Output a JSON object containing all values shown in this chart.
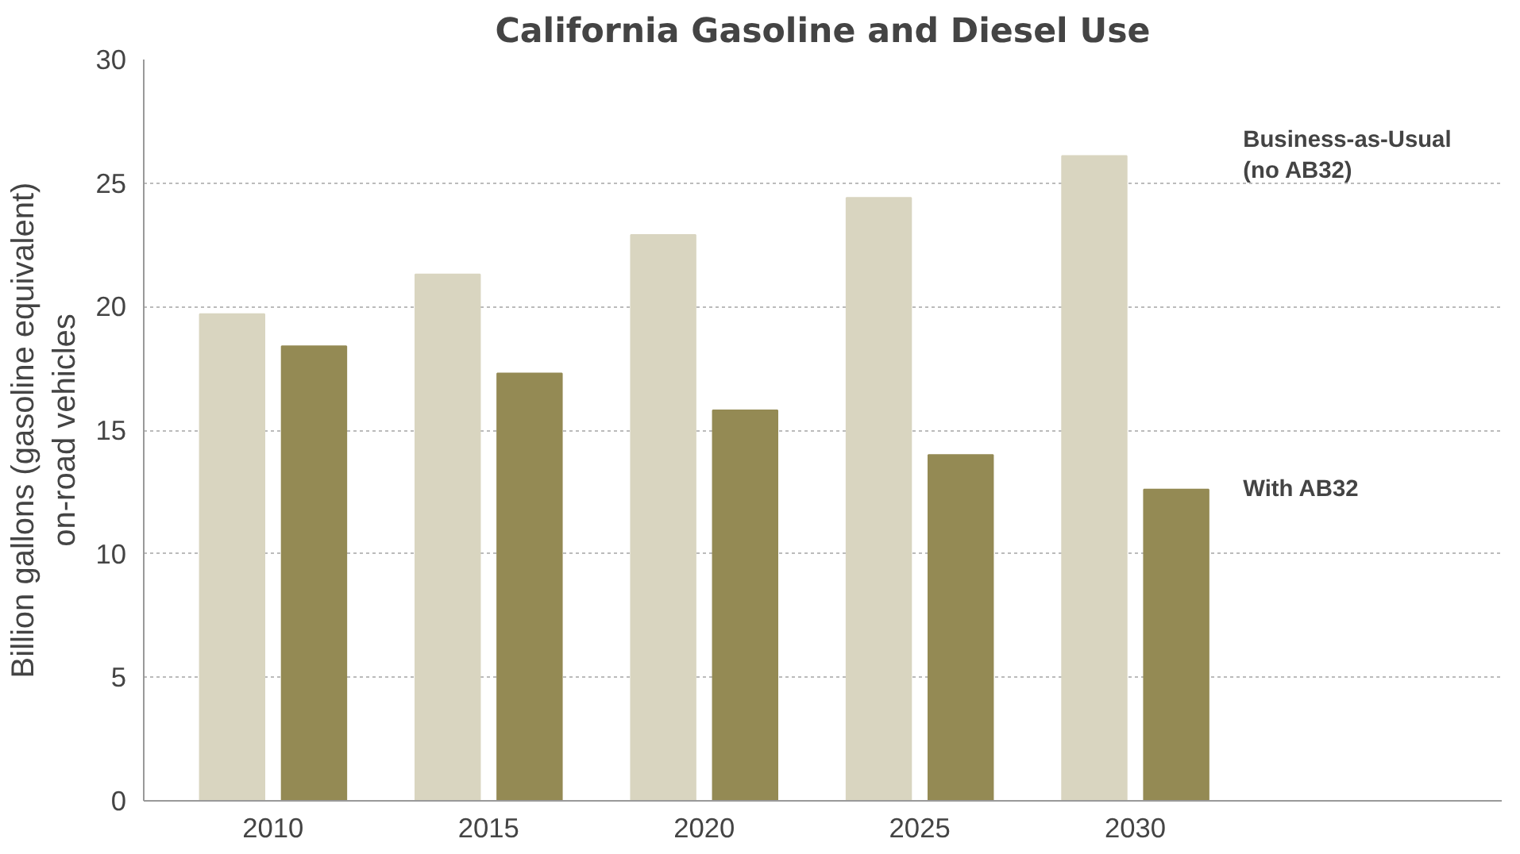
{
  "chart_data": {
    "type": "bar",
    "title": "California Gasoline and Diesel Use",
    "ylabel": "Billion gallons (gasoline equivalent)\non-road vehicles",
    "categories": [
      "2010",
      "2015",
      "2020",
      "2025",
      "2030"
    ],
    "series": [
      {
        "name": "Business-as-Usual\n(no AB32)",
        "color": "#d9d5c0",
        "values": [
          19.7,
          21.3,
          22.9,
          24.4,
          26.1
        ]
      },
      {
        "name": "With AB32",
        "color": "#948a54",
        "values": [
          18.4,
          17.3,
          15.8,
          14.0,
          12.6
        ]
      }
    ],
    "ylim": [
      0,
      30
    ],
    "yticks": [
      0,
      5,
      10,
      15,
      20,
      25,
      30
    ],
    "grid": "y"
  }
}
